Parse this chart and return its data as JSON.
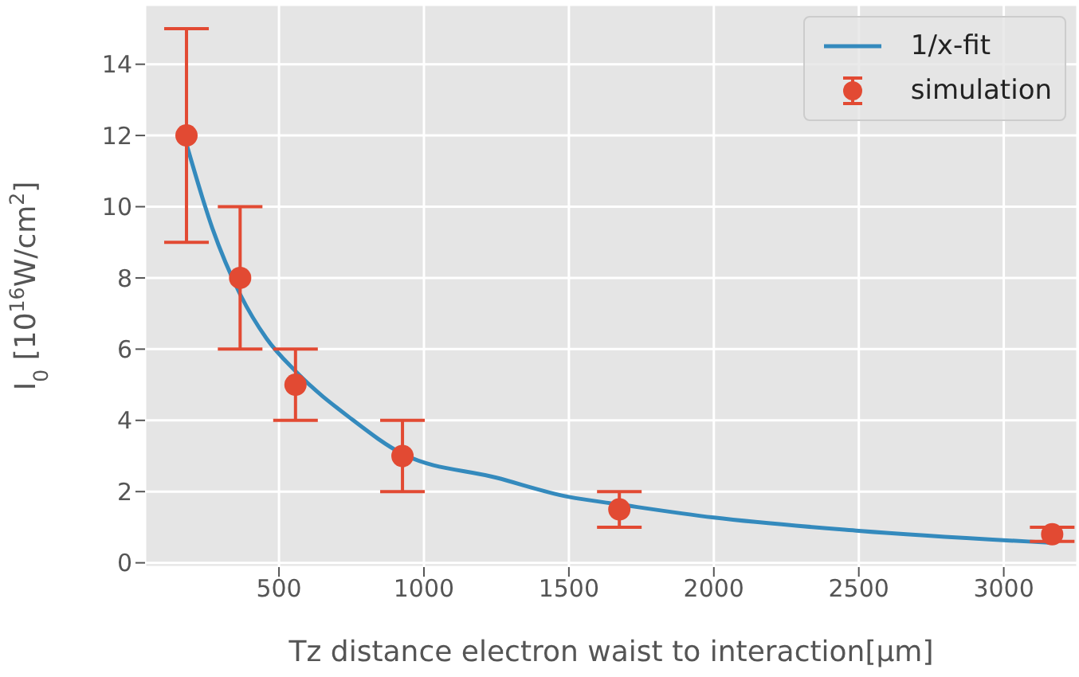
{
  "chart_data": {
    "type": "scatter",
    "xlabel": "Tz distance electron waist to interaction[μm]",
    "ylabel": "I$_{0}$ [10$^{16}$W/cm$^{2}$]",
    "xlim": [
      38,
      3254
    ],
    "ylim": [
      -0.12,
      15.67
    ],
    "xticks": [
      500,
      1000,
      1500,
      2000,
      2500,
      3000
    ],
    "yticks": [
      0,
      2,
      4,
      6,
      8,
      10,
      12,
      14
    ],
    "grid": true,
    "legend": "top right",
    "series": [
      {
        "name": "1/x-fit",
        "type": "line",
        "color": "#348abd",
        "marker": "none",
        "line_style": "solid",
        "x": [
          181,
          270,
          366,
          457,
          557,
          750,
          926,
          1250,
          1500,
          1674,
          2000,
          2500,
          3167
        ],
        "values": [
          11.76,
          9.4,
          7.54,
          6.3,
          5.38,
          4.04,
          3.06,
          2.39,
          1.85,
          1.64,
          1.27,
          0.9,
          0.56
        ]
      },
      {
        "name": "simulation",
        "color": "#e24a33",
        "marker": "circle",
        "x": [
          181,
          366,
          557,
          926,
          1674,
          3167
        ],
        "values": [
          12,
          8,
          5,
          3,
          1.5,
          0.8
        ],
        "errors": [
          [
            9,
            15
          ],
          [
            6,
            10
          ],
          [
            4,
            6
          ],
          [
            2,
            4
          ],
          [
            1,
            2
          ],
          [
            0.6,
            1.0
          ]
        ]
      }
    ]
  }
}
